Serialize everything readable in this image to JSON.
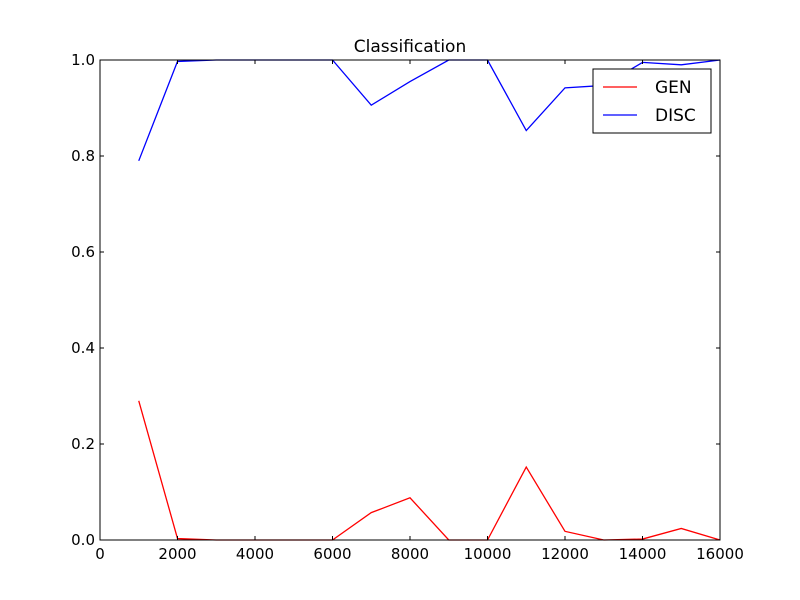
{
  "chart_data": {
    "type": "line",
    "title": "Classification",
    "xlabel": "",
    "ylabel": "",
    "xlim": [
      0,
      16000
    ],
    "ylim": [
      0.0,
      1.0
    ],
    "xticks": [
      0,
      2000,
      4000,
      6000,
      8000,
      10000,
      12000,
      14000,
      16000
    ],
    "xtick_labels": [
      "0",
      "2000",
      "4000",
      "6000",
      "8000",
      "10000",
      "12000",
      "14000",
      "16000"
    ],
    "yticks": [
      0.0,
      0.2,
      0.4,
      0.6,
      0.8,
      1.0
    ],
    "ytick_labels": [
      "0.0",
      "0.2",
      "0.4",
      "0.6",
      "0.8",
      "1.0"
    ],
    "grid": false,
    "legend_position": "top-right",
    "x": [
      1000,
      2000,
      3000,
      4000,
      5000,
      6000,
      7000,
      8000,
      9000,
      10000,
      11000,
      12000,
      13000,
      14000,
      15000,
      16000
    ],
    "series": [
      {
        "name": "GEN",
        "color": "#ff0000",
        "values": [
          0.29,
          0.003,
          0.0,
          0.0,
          0.0,
          0.0,
          0.057,
          0.088,
          0.0,
          0.0,
          0.152,
          0.018,
          0.0,
          0.002,
          0.024,
          0.0
        ]
      },
      {
        "name": "DISC",
        "color": "#0000ff",
        "values": [
          0.79,
          0.997,
          1.0,
          1.0,
          1.0,
          1.0,
          0.906,
          0.955,
          1.0,
          1.0,
          0.853,
          0.942,
          0.947,
          0.995,
          0.99,
          1.0
        ]
      }
    ]
  }
}
